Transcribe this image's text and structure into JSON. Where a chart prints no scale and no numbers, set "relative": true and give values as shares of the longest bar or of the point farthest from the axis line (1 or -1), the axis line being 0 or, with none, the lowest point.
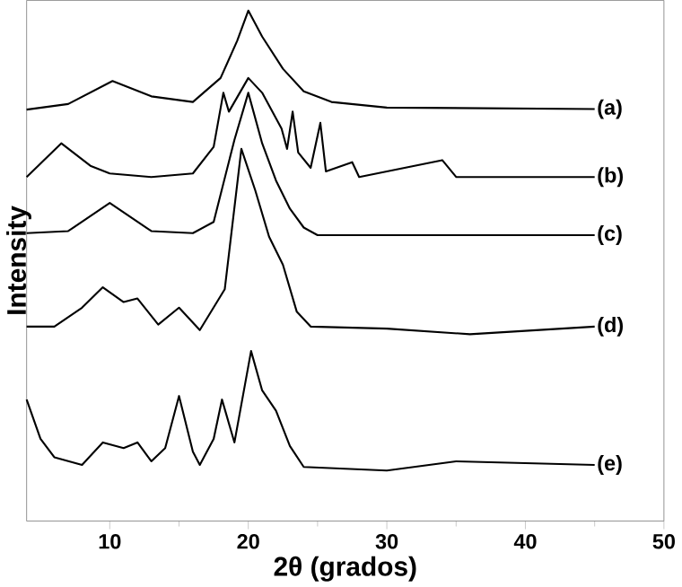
{
  "chart_data": {
    "type": "line",
    "relative": true,
    "xlabel": "2θ (grados)",
    "ylabel": "Intensity",
    "xlim": [
      4,
      50
    ],
    "xticks": [
      10,
      20,
      30,
      40,
      50
    ],
    "legend": false,
    "grid": false,
    "series": [
      {
        "name": "(a)",
        "color": "#000000",
        "x": [
          4,
          7,
          10.2,
          13,
          16,
          18,
          19.2,
          20,
          21,
          22.5,
          24,
          26,
          30,
          45
        ],
        "values": [
          0.806,
          0.817,
          0.862,
          0.832,
          0.821,
          0.868,
          0.941,
          1.0,
          0.949,
          0.886,
          0.842,
          0.821,
          0.81,
          0.807
        ]
      },
      {
        "name": "(b)",
        "color": "#000000",
        "x": [
          4,
          6.5,
          8.6,
          10,
          13,
          16,
          17.5,
          18.2,
          18.6,
          20,
          21,
          22.4,
          22.8,
          23.2,
          23.6,
          24.5,
          25.2,
          25.6,
          27.5,
          28,
          34,
          35,
          45
        ],
        "values": [
          0.674,
          0.74,
          0.696,
          0.681,
          0.674,
          0.681,
          0.733,
          0.839,
          0.802,
          0.868,
          0.839,
          0.769,
          0.729,
          0.802,
          0.722,
          0.692,
          0.78,
          0.685,
          0.703,
          0.674,
          0.707,
          0.674,
          0.674
        ]
      },
      {
        "name": "(c)",
        "color": "#000000",
        "x": [
          4,
          7,
          10,
          13,
          16,
          17.5,
          19,
          20,
          21,
          22,
          23,
          24,
          25,
          45
        ],
        "values": [
          0.564,
          0.568,
          0.623,
          0.568,
          0.564,
          0.586,
          0.747,
          0.839,
          0.74,
          0.667,
          0.612,
          0.575,
          0.56,
          0.56
        ]
      },
      {
        "name": "(d)",
        "color": "#000000",
        "x": [
          4,
          6,
          8,
          9.5,
          11,
          12,
          13.5,
          15,
          16.5,
          18.3,
          19.5,
          20.5,
          21.5,
          22.5,
          23.5,
          24.5,
          30,
          36,
          45
        ],
        "values": [
          0.381,
          0.381,
          0.418,
          0.458,
          0.429,
          0.436,
          0.385,
          0.418,
          0.374,
          0.454,
          0.729,
          0.648,
          0.557,
          0.502,
          0.41,
          0.381,
          0.377,
          0.366,
          0.381
        ]
      },
      {
        "name": "(e)",
        "color": "#000000",
        "x": [
          4,
          5,
          6,
          8,
          9.5,
          11,
          12,
          13,
          14,
          15,
          16,
          16.5,
          17.5,
          18.1,
          19,
          20.2,
          21,
          22,
          23,
          24,
          30,
          35,
          45
        ],
        "values": [
          0.238,
          0.161,
          0.125,
          0.11,
          0.154,
          0.143,
          0.154,
          0.117,
          0.143,
          0.245,
          0.136,
          0.11,
          0.161,
          0.238,
          0.154,
          0.333,
          0.256,
          0.216,
          0.147,
          0.106,
          0.099,
          0.117,
          0.11
        ]
      }
    ]
  }
}
